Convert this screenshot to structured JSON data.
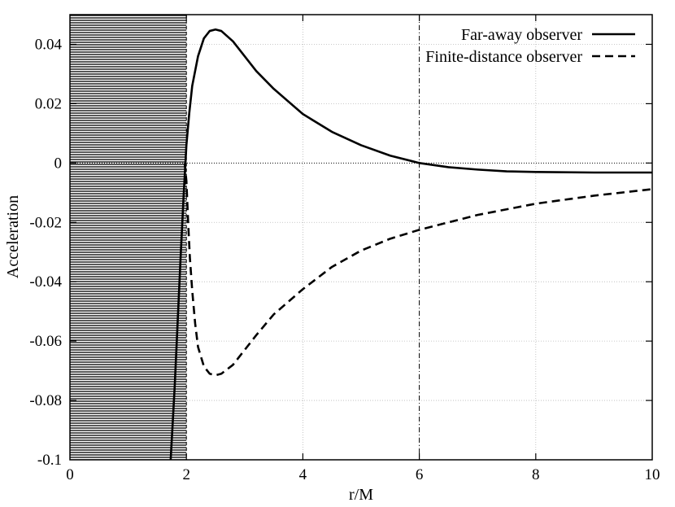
{
  "chart_data": {
    "type": "line",
    "title": "",
    "xlabel": "r/M",
    "ylabel": "Acceleration",
    "xlim": [
      0,
      10
    ],
    "ylim": [
      -0.1,
      0.05
    ],
    "x_ticks": [
      0,
      2,
      4,
      6,
      8,
      10
    ],
    "x_tick_labels": [
      "0",
      "2",
      "4",
      "6",
      "8",
      "10"
    ],
    "y_ticks": [
      0.04,
      0.02,
      0,
      -0.02,
      -0.04,
      -0.06,
      -0.08,
      -0.1
    ],
    "y_tick_labels": [
      "0.04",
      "0.02",
      "0",
      "-0.02",
      "-0.04",
      "-0.06",
      "-0.08",
      "-0.1"
    ],
    "grid": true,
    "legend_position": "top-right",
    "shaded_region": {
      "x_from": 0,
      "x_to": 2,
      "style": "horizontal hatching"
    },
    "reference_lines": [
      {
        "orientation": "vertical",
        "x": 6,
        "style": "dash-dot"
      },
      {
        "orientation": "horizontal",
        "y": 0,
        "style": "dotted"
      }
    ],
    "series": [
      {
        "name": "Far-away observer",
        "style": "solid",
        "color": "#000000",
        "points": [
          [
            1.73,
            -0.1
          ],
          [
            1.8,
            -0.075
          ],
          [
            1.9,
            -0.032
          ],
          [
            1.95,
            -0.012
          ],
          [
            2.0,
            0.006
          ],
          [
            2.05,
            0.017
          ],
          [
            2.1,
            0.026
          ],
          [
            2.2,
            0.036
          ],
          [
            2.3,
            0.042
          ],
          [
            2.4,
            0.0445
          ],
          [
            2.5,
            0.045
          ],
          [
            2.6,
            0.0445
          ],
          [
            2.8,
            0.041
          ],
          [
            3.0,
            0.036
          ],
          [
            3.2,
            0.031
          ],
          [
            3.5,
            0.025
          ],
          [
            4.0,
            0.0165
          ],
          [
            4.5,
            0.0105
          ],
          [
            5.0,
            0.006
          ],
          [
            5.5,
            0.0025
          ],
          [
            6.0,
            0.0
          ],
          [
            6.5,
            -0.0014
          ],
          [
            7.0,
            -0.0022
          ],
          [
            7.5,
            -0.0028
          ],
          [
            8.0,
            -0.003
          ],
          [
            9.0,
            -0.0032
          ],
          [
            10.0,
            -0.0032
          ]
        ]
      },
      {
        "name": "Finite-distance observer",
        "style": "dashed",
        "color": "#000000",
        "points": [
          [
            1.97,
            0.0
          ],
          [
            2.0,
            -0.006
          ],
          [
            2.03,
            -0.02
          ],
          [
            2.06,
            -0.032
          ],
          [
            2.1,
            -0.043
          ],
          [
            2.15,
            -0.054
          ],
          [
            2.2,
            -0.062
          ],
          [
            2.3,
            -0.0685
          ],
          [
            2.4,
            -0.071
          ],
          [
            2.5,
            -0.0715
          ],
          [
            2.6,
            -0.071
          ],
          [
            2.8,
            -0.068
          ],
          [
            3.0,
            -0.063
          ],
          [
            3.2,
            -0.058
          ],
          [
            3.5,
            -0.051
          ],
          [
            4.0,
            -0.0425
          ],
          [
            4.5,
            -0.035
          ],
          [
            5.0,
            -0.0295
          ],
          [
            5.5,
            -0.0255
          ],
          [
            6.0,
            -0.0225
          ],
          [
            7.0,
            -0.0175
          ],
          [
            8.0,
            -0.0137
          ],
          [
            9.0,
            -0.011
          ],
          [
            10.0,
            -0.0088
          ]
        ]
      }
    ]
  }
}
